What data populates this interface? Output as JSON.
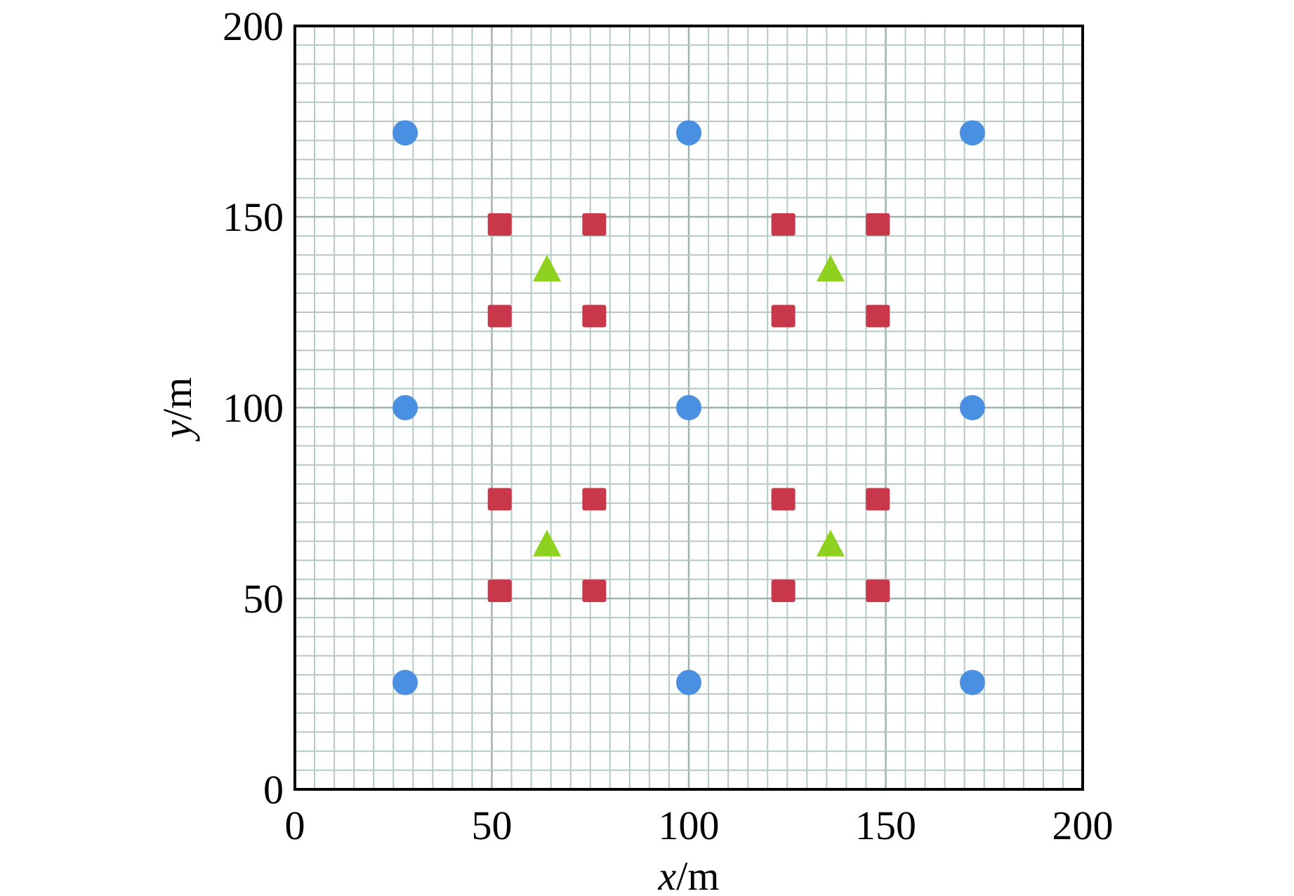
{
  "chart_data": {
    "type": "scatter",
    "xlabel": {
      "var": "x",
      "unit": "/m"
    },
    "ylabel": {
      "var": "y",
      "unit": "/m"
    },
    "xlim": [
      0,
      200
    ],
    "ylim": [
      0,
      200
    ],
    "x_ticks": [
      "0",
      "50",
      "100",
      "150",
      "200"
    ],
    "y_ticks": [
      "0",
      "50",
      "100",
      "150",
      "200"
    ],
    "grid": true,
    "minor_grid_step": 5,
    "series": [
      {
        "marker": "circle",
        "color": "#4a90e2",
        "points": [
          [
            28,
            172
          ],
          [
            100,
            172
          ],
          [
            172,
            172
          ],
          [
            28,
            100
          ],
          [
            100,
            100
          ],
          [
            172,
            100
          ],
          [
            28,
            28
          ],
          [
            100,
            28
          ],
          [
            172,
            28
          ]
        ]
      },
      {
        "marker": "square",
        "color": "#c8374a",
        "points": [
          [
            52,
            148
          ],
          [
            76,
            148
          ],
          [
            124,
            148
          ],
          [
            148,
            148
          ],
          [
            52,
            124
          ],
          [
            76,
            124
          ],
          [
            124,
            124
          ],
          [
            148,
            124
          ],
          [
            52,
            76
          ],
          [
            76,
            76
          ],
          [
            124,
            76
          ],
          [
            148,
            76
          ],
          [
            52,
            52
          ],
          [
            76,
            52
          ],
          [
            124,
            52
          ],
          [
            148,
            52
          ]
        ]
      },
      {
        "marker": "triangle",
        "color": "#8fd11f",
        "points": [
          [
            64,
            136
          ],
          [
            136,
            136
          ],
          [
            64,
            64
          ],
          [
            136,
            64
          ]
        ]
      }
    ]
  }
}
